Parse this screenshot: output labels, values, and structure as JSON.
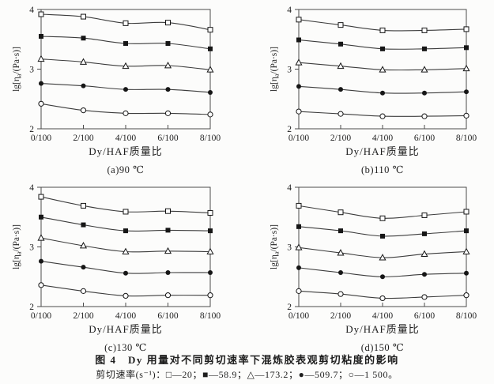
{
  "figure": {
    "title": "图 4　Dy 用量对不同剪切速率下混炼胶表观剪切粘度的影响",
    "legend_line": "剪切速率(s⁻¹)：□—20；■—58.9；△—173.2；●—509.7；○—1 500。"
  },
  "colors": {
    "line": "#3c3c3c",
    "marker": "#161616",
    "frame": "#4b4b4b",
    "text": "#1e1e1e",
    "background": "#fcfcfb"
  },
  "chart_data": [
    {
      "type": "line",
      "caption": "(a)90 ℃",
      "xlabel": "Dy/HAF质量比",
      "ylabel": "lg[ηa/(Pa·s)]",
      "ylabel_parts": [
        "lg[η",
        "a",
        "/(Pa·s)]"
      ],
      "categories": [
        "0/100",
        "2/100",
        "4/100",
        "6/100",
        "8/100"
      ],
      "ylim": [
        2,
        4
      ],
      "yticks": [
        2,
        3,
        4
      ],
      "grid": false,
      "legend_position": "none",
      "series": [
        {
          "name": "20",
          "marker": "open-square",
          "values": [
            3.92,
            3.88,
            3.77,
            3.78,
            3.66
          ]
        },
        {
          "name": "58.9",
          "marker": "filled-square",
          "values": [
            3.55,
            3.52,
            3.43,
            3.43,
            3.34
          ]
        },
        {
          "name": "173.2",
          "marker": "open-triangle",
          "values": [
            3.17,
            3.12,
            3.05,
            3.06,
            2.99
          ]
        },
        {
          "name": "509.7",
          "marker": "filled-circle",
          "values": [
            2.76,
            2.72,
            2.66,
            2.66,
            2.61
          ]
        },
        {
          "name": "1 500",
          "marker": "open-circle",
          "values": [
            2.42,
            2.31,
            2.26,
            2.26,
            2.24
          ]
        }
      ]
    },
    {
      "type": "line",
      "caption": "(b)110 ℃",
      "xlabel": "Dy/HAF质量比",
      "ylabel": "lg[ηa/(Pa·s)]",
      "ylabel_parts": [
        "lg[η",
        "a",
        "/(Pa·s)]"
      ],
      "categories": [
        "0/100",
        "2/100",
        "4/100",
        "6/100",
        "8/100"
      ],
      "ylim": [
        2,
        4
      ],
      "yticks": [
        2,
        3,
        4
      ],
      "grid": false,
      "legend_position": "none",
      "series": [
        {
          "name": "20",
          "marker": "open-square",
          "values": [
            3.83,
            3.74,
            3.65,
            3.65,
            3.67
          ]
        },
        {
          "name": "58.9",
          "marker": "filled-square",
          "values": [
            3.49,
            3.42,
            3.34,
            3.34,
            3.36
          ]
        },
        {
          "name": "173.2",
          "marker": "open-triangle",
          "values": [
            3.11,
            3.05,
            2.99,
            2.99,
            3.01
          ]
        },
        {
          "name": "509.7",
          "marker": "filled-circle",
          "values": [
            2.71,
            2.66,
            2.6,
            2.6,
            2.62
          ]
        },
        {
          "name": "1 500",
          "marker": "open-circle",
          "values": [
            2.29,
            2.25,
            2.21,
            2.21,
            2.22
          ]
        }
      ]
    },
    {
      "type": "line",
      "caption": "(c)130 ℃",
      "xlabel": "Dy/HAF质量比",
      "ylabel": "lg[ηa/(Pa·s)]",
      "ylabel_parts": [
        "lg[η",
        "a",
        "/(Pa·s)]"
      ],
      "categories": [
        "0/100",
        "2/100",
        "4/100",
        "6/100",
        "8/100"
      ],
      "ylim": [
        2,
        4
      ],
      "yticks": [
        2,
        3,
        4
      ],
      "grid": false,
      "legend_position": "none",
      "series": [
        {
          "name": "20",
          "marker": "open-square",
          "values": [
            3.84,
            3.69,
            3.59,
            3.6,
            3.57
          ]
        },
        {
          "name": "58.9",
          "marker": "filled-square",
          "values": [
            3.5,
            3.37,
            3.27,
            3.28,
            3.27
          ]
        },
        {
          "name": "173.2",
          "marker": "open-triangle",
          "values": [
            3.15,
            3.02,
            2.92,
            2.93,
            2.92
          ]
        },
        {
          "name": "509.7",
          "marker": "filled-circle",
          "values": [
            2.76,
            2.66,
            2.56,
            2.57,
            2.57
          ]
        },
        {
          "name": "1 500",
          "marker": "open-circle",
          "values": [
            2.36,
            2.26,
            2.18,
            2.19,
            2.19
          ]
        }
      ]
    },
    {
      "type": "line",
      "caption": "(d)150 ℃",
      "xlabel": "Dy/HAF质量比",
      "ylabel": "lg[ηa/(Pa·s)]",
      "ylabel_parts": [
        "lg[η",
        "a",
        "/(Pa·s)]"
      ],
      "categories": [
        "0/100",
        "2/100",
        "4/100",
        "6/100",
        "8/100"
      ],
      "ylim": [
        2,
        4
      ],
      "yticks": [
        2,
        3,
        4
      ],
      "grid": false,
      "legend_position": "none",
      "series": [
        {
          "name": "20",
          "marker": "open-square",
          "values": [
            3.69,
            3.58,
            3.48,
            3.53,
            3.59
          ]
        },
        {
          "name": "58.9",
          "marker": "filled-square",
          "values": [
            3.34,
            3.27,
            3.18,
            3.22,
            3.27
          ]
        },
        {
          "name": "173.2",
          "marker": "open-triangle",
          "values": [
            2.99,
            2.9,
            2.82,
            2.88,
            2.92
          ]
        },
        {
          "name": "509.7",
          "marker": "filled-circle",
          "values": [
            2.65,
            2.57,
            2.5,
            2.54,
            2.56
          ]
        },
        {
          "name": "1 500",
          "marker": "open-circle",
          "values": [
            2.26,
            2.21,
            2.14,
            2.16,
            2.19
          ]
        }
      ]
    }
  ]
}
